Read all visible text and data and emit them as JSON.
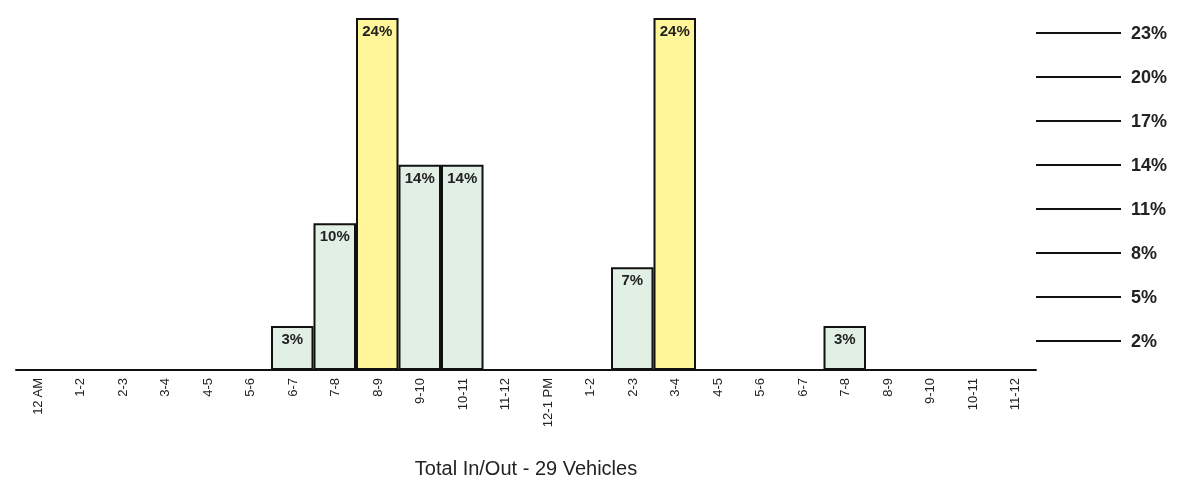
{
  "chart_data": {
    "type": "bar",
    "xlabel": "Total In/Out - 29 Vehicles",
    "categories": [
      "12 AM",
      "1-2",
      "2-3",
      "3-4",
      "4-5",
      "5-6",
      "6-7",
      "7-8",
      "8-9",
      "9-10",
      "10-11",
      "11-12",
      "12-1 PM",
      "1-2",
      "2-3",
      "3-4",
      "4-5",
      "5-6",
      "6-7",
      "7-8",
      "8-9",
      "9-10",
      "10-11",
      "11-12"
    ],
    "values": [
      0,
      0,
      0,
      0,
      0,
      0,
      3,
      10,
      24,
      14,
      14,
      0,
      0,
      0,
      7,
      24,
      0,
      0,
      0,
      3,
      0,
      0,
      0,
      0
    ],
    "value_labels": [
      null,
      null,
      null,
      null,
      null,
      null,
      "3%",
      "10%",
      "24%",
      "14%",
      "14%",
      null,
      null,
      null,
      "7%",
      "24%",
      null,
      null,
      null,
      "3%",
      null,
      null,
      null,
      null
    ],
    "colors": [
      "#e2efe4",
      "#e2efe4",
      "#e2efe4",
      "#e2efe4",
      "#e2efe4",
      "#e2efe4",
      "#e2efe4",
      "#e2efe4",
      "#fff599",
      "#e2efe4",
      "#e2efe4",
      "#e2efe4",
      "#e2efe4",
      "#e2efe4",
      "#e2efe4",
      "#fff599",
      "#e2efe4",
      "#e2efe4",
      "#e2efe4",
      "#e2efe4",
      "#e2efe4",
      "#e2efe4",
      "#e2efe4",
      "#e2efe4"
    ],
    "yticks": [
      {
        "value": 2,
        "label": "2%"
      },
      {
        "value": 5,
        "label": "5%"
      },
      {
        "value": 8,
        "label": "8%"
      },
      {
        "value": 11,
        "label": "11%"
      },
      {
        "value": 14,
        "label": "14%"
      },
      {
        "value": 17,
        "label": "17%"
      },
      {
        "value": 20,
        "label": "20%"
      },
      {
        "value": 23,
        "label": "23%"
      }
    ],
    "ylim": [
      0,
      24
    ],
    "grid": false
  }
}
